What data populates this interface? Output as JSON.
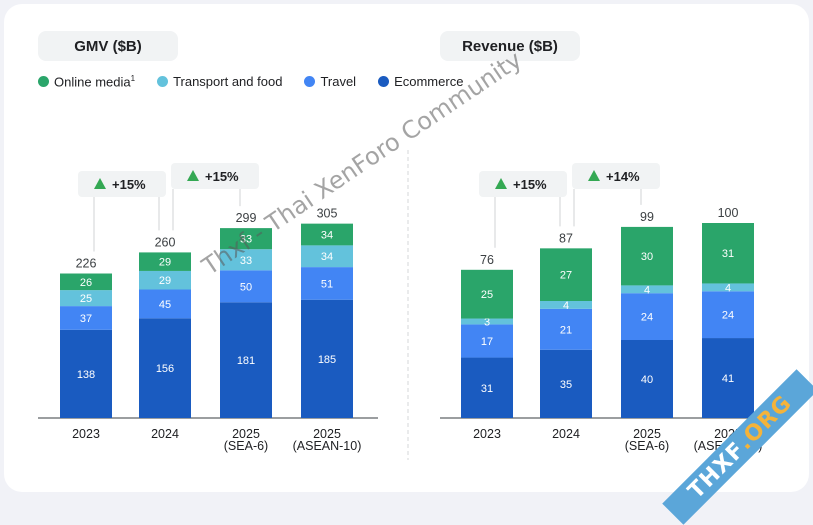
{
  "colors": {
    "online_media": "#2aa56a",
    "transport_food": "#63c2dc",
    "travel": "#4285f4",
    "ecommerce": "#1a5bc0",
    "growth_arrow": "#34a853",
    "text": "#202124",
    "total_text": "#3c4043"
  },
  "legend": [
    {
      "key": "online_media",
      "label": "Online media",
      "sup": "1"
    },
    {
      "key": "transport_food",
      "label": "Transport and food",
      "sup": ""
    },
    {
      "key": "travel",
      "label": "Travel",
      "sup": ""
    },
    {
      "key": "ecommerce",
      "label": "Ecommerce",
      "sup": ""
    }
  ],
  "watermark": "Thxf - Thai XenForo Community",
  "badge": {
    "prefix": "THXF",
    "suffix": ".ORG"
  },
  "chart_data": [
    {
      "type": "bar",
      "stacked": true,
      "title": "GMV ($B)",
      "categories": [
        "2023",
        "2024",
        "2025\n(SEA-6)",
        "2025\n(ASEAN-10)"
      ],
      "series": [
        {
          "name": "Ecommerce",
          "key": "ecommerce",
          "values": [
            138,
            156,
            181,
            185
          ]
        },
        {
          "name": "Travel",
          "key": "travel",
          "values": [
            37,
            45,
            50,
            51
          ]
        },
        {
          "name": "Transport and food",
          "key": "transport_food",
          "values": [
            25,
            29,
            33,
            34
          ]
        },
        {
          "name": "Online media",
          "key": "online_media",
          "values": [
            26,
            29,
            33,
            34
          ]
        }
      ],
      "totals": [
        226,
        260,
        299,
        305
      ],
      "growth": [
        {
          "from": 0,
          "to": 1,
          "label": "+15%"
        },
        {
          "from": 1,
          "to": 2,
          "label": "+15%"
        }
      ],
      "ylim": [
        0,
        305
      ]
    },
    {
      "type": "bar",
      "stacked": true,
      "title": "Revenue ($B)",
      "categories": [
        "2023",
        "2024",
        "2025\n(SEA-6)",
        "2025\n(ASEAN-10)"
      ],
      "series": [
        {
          "name": "Ecommerce",
          "key": "ecommerce",
          "values": [
            31,
            35,
            40,
            41
          ]
        },
        {
          "name": "Travel",
          "key": "travel",
          "values": [
            17,
            21,
            24,
            24
          ]
        },
        {
          "name": "Transport and food",
          "key": "transport_food",
          "values": [
            3,
            4,
            4,
            4
          ]
        },
        {
          "name": "Online media",
          "key": "online_media",
          "values": [
            25,
            27,
            30,
            31
          ]
        }
      ],
      "totals": [
        76,
        87,
        99,
        100
      ],
      "growth": [
        {
          "from": 0,
          "to": 1,
          "label": "+15%"
        },
        {
          "from": 1,
          "to": 2,
          "label": "+14%"
        }
      ],
      "ylim": [
        0,
        100
      ]
    }
  ]
}
